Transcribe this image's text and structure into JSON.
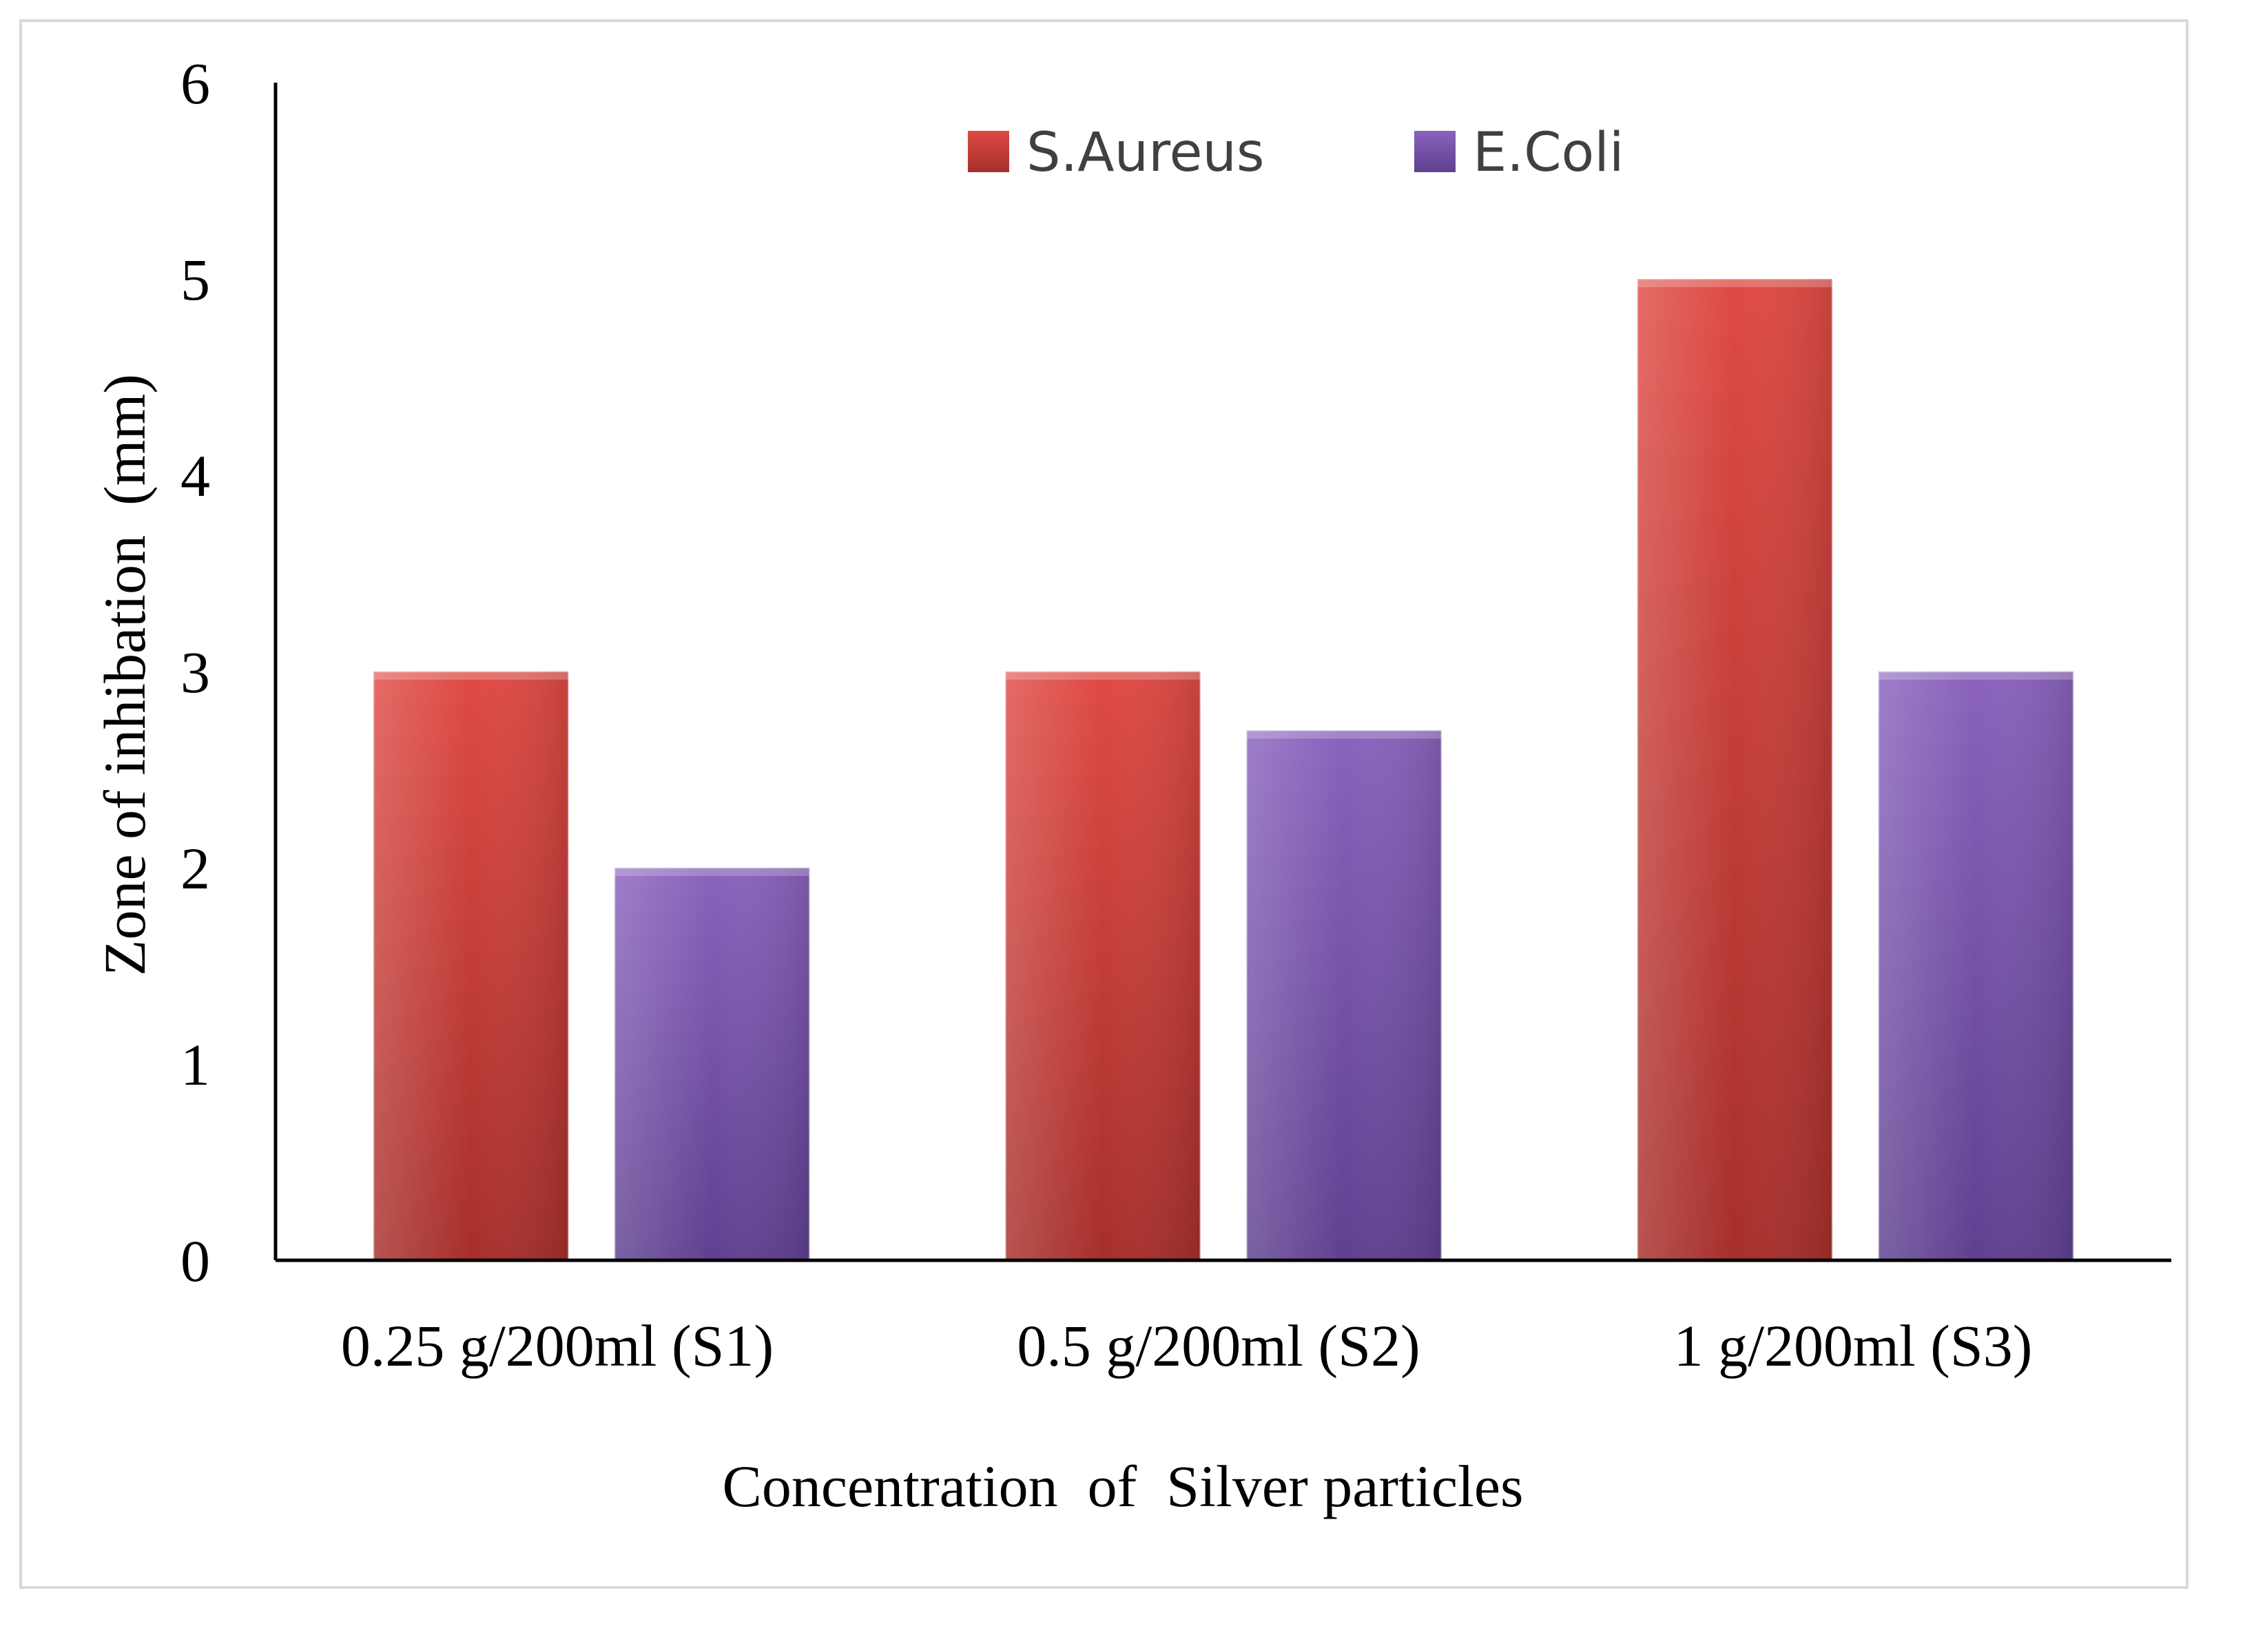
{
  "chart_data": {
    "type": "bar",
    "title": "",
    "categories": [
      "0.25   g/200ml (S1)",
      "0.5 g/200ml (S2)",
      "1 g/200ml (S3)"
    ],
    "series": [
      {
        "name": "S.Aureus",
        "values": [
          3,
          3,
          5
        ],
        "color": "#c23b36"
      },
      {
        "name": "E.Coli",
        "values": [
          2,
          2.7,
          3
        ],
        "color": "#7a57a8"
      }
    ],
    "xlabel": "Concentration  of  Silver particles",
    "ylabel": "Zone of inhibation  (mm)",
    "ylim": [
      0,
      6
    ],
    "yticks": [
      "0",
      "1",
      "2",
      "3",
      "4",
      "5",
      "6"
    ],
    "grid": false,
    "legend_position": "top-center"
  }
}
